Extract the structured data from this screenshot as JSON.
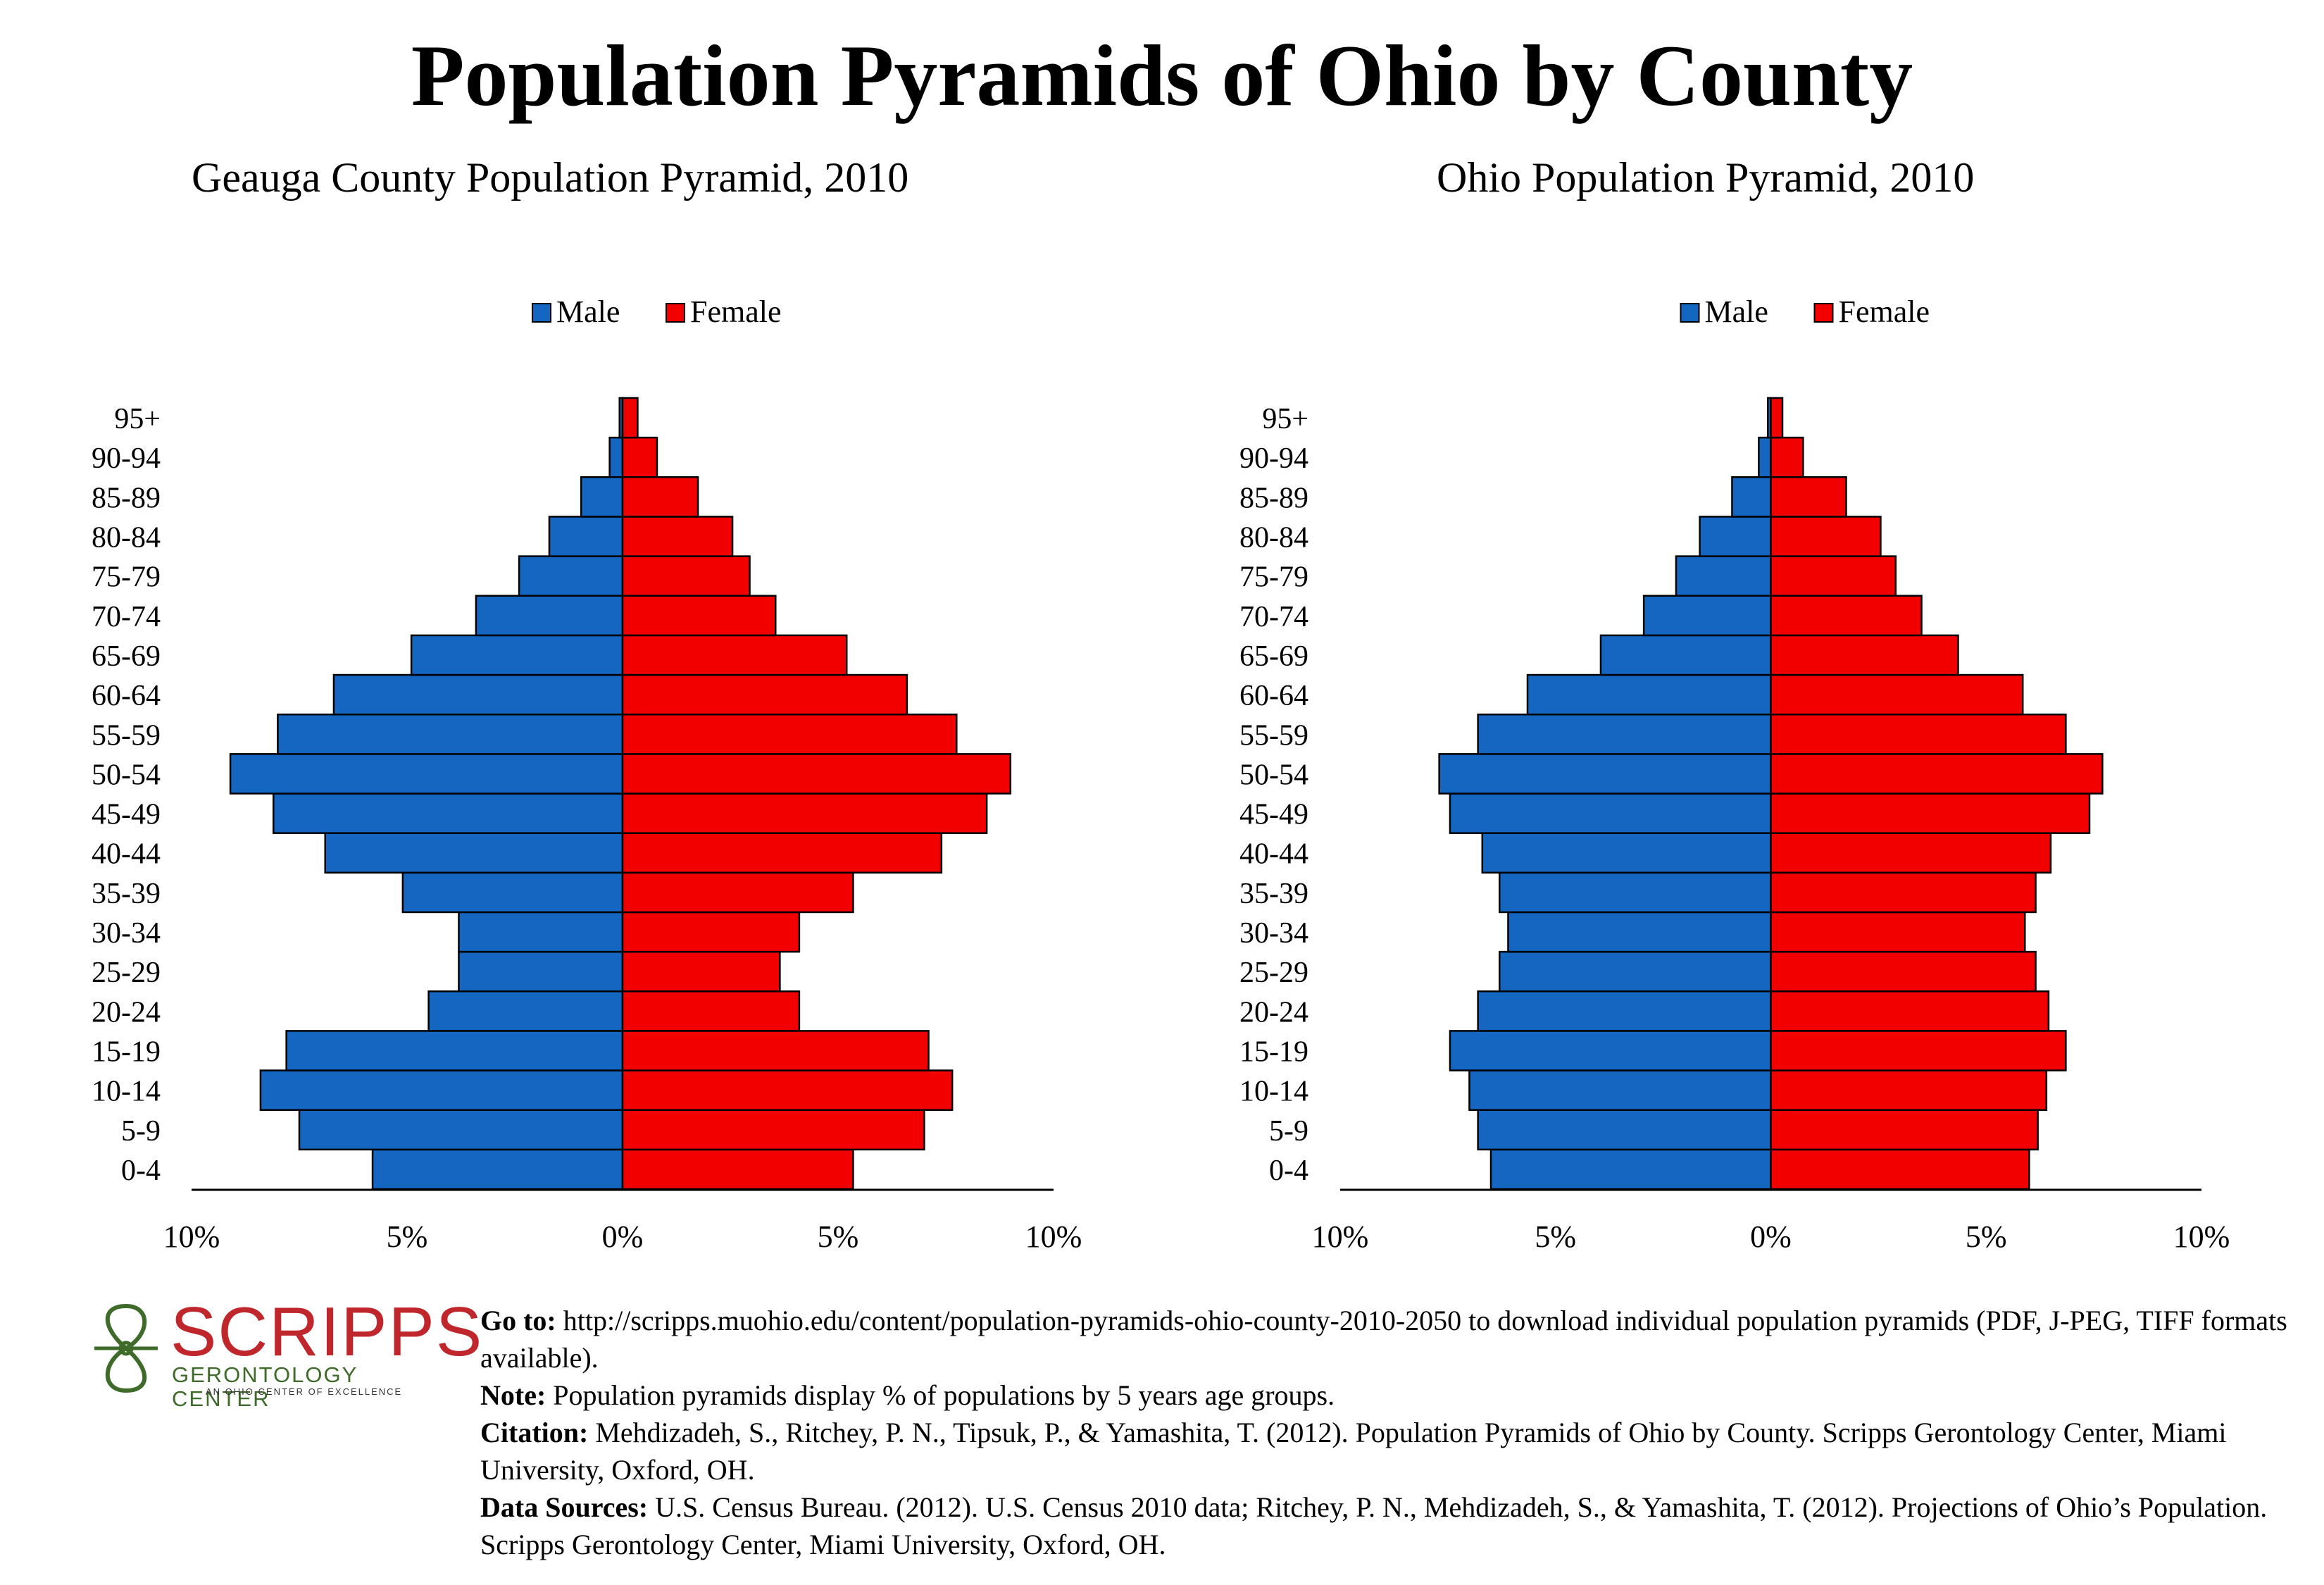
{
  "title": "Population Pyramids of Ohio by County",
  "colors": {
    "male": "#1466C0",
    "female": "#F20000",
    "logo_red": "#C0272D",
    "logo_green": "#3E6B2A"
  },
  "chart_data": [
    {
      "type": "bar",
      "title": "Geauga County Population Pyramid, 2010",
      "legend": [
        "Male",
        "Female"
      ],
      "legend_position": "top-center",
      "categories": [
        "0-4",
        "5-9",
        "10-14",
        "15-19",
        "20-24",
        "25-29",
        "30-34",
        "35-39",
        "40-44",
        "45-49",
        "50-54",
        "55-59",
        "60-64",
        "65-69",
        "70-74",
        "75-79",
        "80-84",
        "85-89",
        "90-94",
        "95+"
      ],
      "series": [
        {
          "name": "Male",
          "values": [
            5.8,
            7.5,
            8.4,
            7.8,
            4.5,
            3.8,
            3.8,
            5.1,
            6.9,
            8.1,
            9.1,
            8.0,
            6.7,
            4.9,
            3.4,
            2.4,
            1.7,
            0.96,
            0.3,
            0.07
          ]
        },
        {
          "name": "Female",
          "values": [
            5.35,
            7.0,
            7.65,
            7.1,
            4.1,
            3.65,
            4.1,
            5.35,
            7.4,
            8.45,
            9.0,
            7.75,
            6.6,
            5.2,
            3.55,
            2.95,
            2.55,
            1.75,
            0.8,
            0.35
          ]
        }
      ],
      "xlim": [
        -10,
        10
      ],
      "xticks": [
        "10%",
        "5%",
        "0%",
        "5%",
        "10%"
      ],
      "grid": false
    },
    {
      "type": "bar",
      "title": "Ohio Population Pyramid, 2010",
      "legend": [
        "Male",
        "Female"
      ],
      "legend_position": "top-center",
      "categories": [
        "0-4",
        "5-9",
        "10-14",
        "15-19",
        "20-24",
        "25-29",
        "30-34",
        "35-39",
        "40-44",
        "45-49",
        "50-54",
        "55-59",
        "60-64",
        "65-69",
        "70-74",
        "75-79",
        "80-84",
        "85-89",
        "90-94",
        "95+"
      ],
      "series": [
        {
          "name": "Male",
          "values": [
            6.5,
            6.8,
            7.0,
            7.45,
            6.8,
            6.3,
            6.1,
            6.3,
            6.7,
            7.45,
            7.7,
            6.8,
            5.65,
            3.95,
            2.95,
            2.2,
            1.65,
            0.9,
            0.28,
            0.07
          ]
        },
        {
          "name": "Female",
          "values": [
            6.0,
            6.2,
            6.4,
            6.85,
            6.45,
            6.15,
            5.9,
            6.15,
            6.5,
            7.4,
            7.7,
            6.85,
            5.85,
            4.35,
            3.5,
            2.9,
            2.55,
            1.75,
            0.75,
            0.27
          ]
        }
      ],
      "xlim": [
        -10,
        10
      ],
      "xticks": [
        "10%",
        "5%",
        "0%",
        "5%",
        "10%"
      ],
      "grid": false
    }
  ],
  "logo": {
    "name": "SCRIPPS",
    "subtitle": "GERONTOLOGY CENTER",
    "tagline": "AN OHIO CENTER OF EXCELLENCE"
  },
  "footer": {
    "goto_label": "Go to:",
    "goto_text": "http://scripps.muohio.edu/content/population-pyramids-ohio-county-2010-2050 to download individual population pyramids (PDF, J-PEG, TIFF formats available).",
    "note_label": "Note:",
    "note_text": "Population pyramids display % of populations by 5 years age groups.",
    "citation_label": "Citation:",
    "citation_text": "Mehdizadeh, S., Ritchey, P. N., Tipsuk, P., & Yamashita, T. (2012). Population Pyramids of Ohio by County. Scripps Gerontology Center, Miami University, Oxford, OH.",
    "sources_label": "Data Sources:",
    "sources_text": "U.S. Census Bureau. (2012). U.S. Census 2010 data; Ritchey, P. N., Mehdizadeh, S., & Yamashita, T. (2012). Projections of Ohio’s Population. Scripps Gerontology Center, Miami University, Oxford, OH."
  }
}
